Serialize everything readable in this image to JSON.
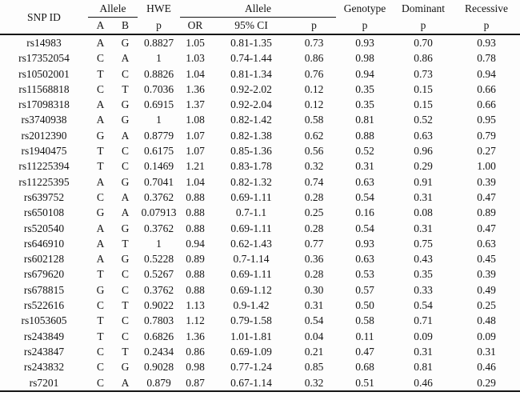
{
  "table": {
    "header": {
      "snp_id": "SNP ID",
      "allele_ab_group": "Allele",
      "hwe_group": "HWE",
      "allele_or_group": "Allele",
      "genotype_group": "Genotype",
      "dominant_group": "Dominant",
      "recessive_group": "Recessive",
      "sub": {
        "a": "A",
        "b": "B",
        "hwe_p": "p",
        "or": "OR",
        "ci": "95% CI",
        "allele_p": "p",
        "genotype_p": "p",
        "dominant_p": "p",
        "recessive_p": "p"
      }
    },
    "columns": [
      "snp",
      "a",
      "b",
      "hwe_p",
      "or",
      "ci",
      "allele_p",
      "genotype_p",
      "dominant_p",
      "recessive_p"
    ],
    "rows": [
      {
        "snp": "rs14983",
        "a": "A",
        "b": "G",
        "hwe_p": "0.8827",
        "or": "1.05",
        "ci": "0.81-1.35",
        "allele_p": "0.73",
        "genotype_p": "0.93",
        "dominant_p": "0.70",
        "recessive_p": "0.93",
        "bold_cells": []
      },
      {
        "snp": "rs17352054",
        "a": "C",
        "b": "A",
        "hwe_p": "1",
        "or": "1.03",
        "ci": "0.74-1.44",
        "allele_p": "0.86",
        "genotype_p": "0.98",
        "dominant_p": "0.86",
        "recessive_p": "0.78",
        "bold_cells": []
      },
      {
        "snp": "rs10502001",
        "a": "T",
        "b": "C",
        "hwe_p": "0.8826",
        "or": "1.04",
        "ci": "0.81-1.34",
        "allele_p": "0.76",
        "genotype_p": "0.94",
        "dominant_p": "0.73",
        "recessive_p": "0.94",
        "bold_cells": []
      },
      {
        "snp": "rs11568818",
        "a": "C",
        "b": "T",
        "hwe_p": "0.7036",
        "or": "1.36",
        "ci": "0.92-2.02",
        "allele_p": "0.12",
        "genotype_p": "0.35",
        "dominant_p": "0.15",
        "recessive_p": "0.66",
        "bold_cells": []
      },
      {
        "snp": "rs17098318",
        "a": "A",
        "b": "G",
        "hwe_p": "0.6915",
        "or": "1.37",
        "ci": "0.92-2.04",
        "allele_p": "0.12",
        "genotype_p": "0.35",
        "dominant_p": "0.15",
        "recessive_p": "0.66",
        "bold_cells": []
      },
      {
        "snp": "rs3740938",
        "a": "A",
        "b": "G",
        "hwe_p": "1",
        "or": "1.08",
        "ci": "0.82-1.42",
        "allele_p": "0.58",
        "genotype_p": "0.81",
        "dominant_p": "0.52",
        "recessive_p": "0.95",
        "bold_cells": []
      },
      {
        "snp": "rs2012390",
        "a": "G",
        "b": "A",
        "hwe_p": "0.8779",
        "or": "1.07",
        "ci": "0.82-1.38",
        "allele_p": "0.62",
        "genotype_p": "0.88",
        "dominant_p": "0.63",
        "recessive_p": "0.79",
        "bold_cells": []
      },
      {
        "snp": "rs1940475",
        "a": "T",
        "b": "C",
        "hwe_p": "0.6175",
        "or": "1.07",
        "ci": "0.85-1.36",
        "allele_p": "0.56",
        "genotype_p": "0.52",
        "dominant_p": "0.96",
        "recessive_p": "0.27",
        "bold_cells": []
      },
      {
        "snp": "rs11225394",
        "a": "T",
        "b": "C",
        "hwe_p": "0.1469",
        "or": "1.21",
        "ci": "0.83-1.78",
        "allele_p": "0.32",
        "genotype_p": "0.31",
        "dominant_p": "0.29",
        "recessive_p": "1.00",
        "bold_cells": []
      },
      {
        "snp": "rs11225395",
        "a": "A",
        "b": "G",
        "hwe_p": "0.7041",
        "or": "1.04",
        "ci": "0.82-1.32",
        "allele_p": "0.74",
        "genotype_p": "0.63",
        "dominant_p": "0.91",
        "recessive_p": "0.39",
        "bold_cells": []
      },
      {
        "snp": "rs639752",
        "a": "C",
        "b": "A",
        "hwe_p": "0.3762",
        "or": "0.88",
        "ci": "0.69-1.11",
        "allele_p": "0.28",
        "genotype_p": "0.54",
        "dominant_p": "0.31",
        "recessive_p": "0.47",
        "bold_cells": []
      },
      {
        "snp": "rs650108",
        "a": "G",
        "b": "A",
        "hwe_p": "0.07913",
        "or": "0.88",
        "ci": "0.7-1.1",
        "allele_p": "0.25",
        "genotype_p": "0.16",
        "dominant_p": "0.08",
        "recessive_p": "0.89",
        "bold_cells": []
      },
      {
        "snp": "rs520540",
        "a": "A",
        "b": "G",
        "hwe_p": "0.3762",
        "or": "0.88",
        "ci": "0.69-1.11",
        "allele_p": "0.28",
        "genotype_p": "0.54",
        "dominant_p": "0.31",
        "recessive_p": "0.47",
        "bold_cells": []
      },
      {
        "snp": "rs646910",
        "a": "A",
        "b": "T",
        "hwe_p": "1",
        "or": "0.94",
        "ci": "0.62-1.43",
        "allele_p": "0.77",
        "genotype_p": "0.93",
        "dominant_p": "0.75",
        "recessive_p": "0.63",
        "bold_cells": []
      },
      {
        "snp": "rs602128",
        "a": "A",
        "b": "G",
        "hwe_p": "0.5228",
        "or": "0.89",
        "ci": "0.7-1.14",
        "allele_p": "0.36",
        "genotype_p": "0.63",
        "dominant_p": "0.43",
        "recessive_p": "0.45",
        "bold_cells": []
      },
      {
        "snp": "rs679620",
        "a": "T",
        "b": "C",
        "hwe_p": "0.5267",
        "or": "0.88",
        "ci": "0.69-1.11",
        "allele_p": "0.28",
        "genotype_p": "0.53",
        "dominant_p": "0.35",
        "recessive_p": "0.39",
        "bold_cells": []
      },
      {
        "snp": "rs678815",
        "a": "G",
        "b": "C",
        "hwe_p": "0.3762",
        "or": "0.88",
        "ci": "0.69-1.12",
        "allele_p": "0.30",
        "genotype_p": "0.57",
        "dominant_p": "0.33",
        "recessive_p": "0.49",
        "bold_cells": []
      },
      {
        "snp": "rs522616",
        "a": "C",
        "b": "T",
        "hwe_p": "0.9022",
        "or": "1.13",
        "ci": "0.9-1.42",
        "allele_p": "0.31",
        "genotype_p": "0.50",
        "dominant_p": "0.54",
        "recessive_p": "0.25",
        "bold_cells": []
      },
      {
        "snp": "rs1053605",
        "a": "T",
        "b": "C",
        "hwe_p": "0.7803",
        "or": "1.12",
        "ci": "0.79-1.58",
        "allele_p": "0.54",
        "genotype_p": "0.58",
        "dominant_p": "0.71",
        "recessive_p": "0.48",
        "bold_cells": []
      },
      {
        "snp": "rs243849",
        "a": "T",
        "b": "C",
        "hwe_p": "0.6826",
        "or": "1.36",
        "ci": "1.01-1.81",
        "allele_p": "0.04",
        "genotype_p": "0.11",
        "dominant_p": "0.09",
        "recessive_p": "0.09",
        "bold_cells": [
          "or",
          "ci"
        ]
      },
      {
        "snp": "rs243847",
        "a": "C",
        "b": "T",
        "hwe_p": "0.2434",
        "or": "0.86",
        "ci": "0.69-1.09",
        "allele_p": "0.21",
        "genotype_p": "0.47",
        "dominant_p": "0.31",
        "recessive_p": "0.31",
        "bold_cells": []
      },
      {
        "snp": "rs243832",
        "a": "C",
        "b": "G",
        "hwe_p": "0.9028",
        "or": "0.98",
        "ci": "0.77-1.24",
        "allele_p": "0.85",
        "genotype_p": "0.68",
        "dominant_p": "0.81",
        "recessive_p": "0.46",
        "bold_cells": []
      },
      {
        "snp": "rs7201",
        "a": "C",
        "b": "A",
        "hwe_p": "0.879",
        "or": "0.87",
        "ci": "0.67-1.14",
        "allele_p": "0.32",
        "genotype_p": "0.51",
        "dominant_p": "0.46",
        "recessive_p": "0.29",
        "bold_cells": []
      }
    ]
  }
}
